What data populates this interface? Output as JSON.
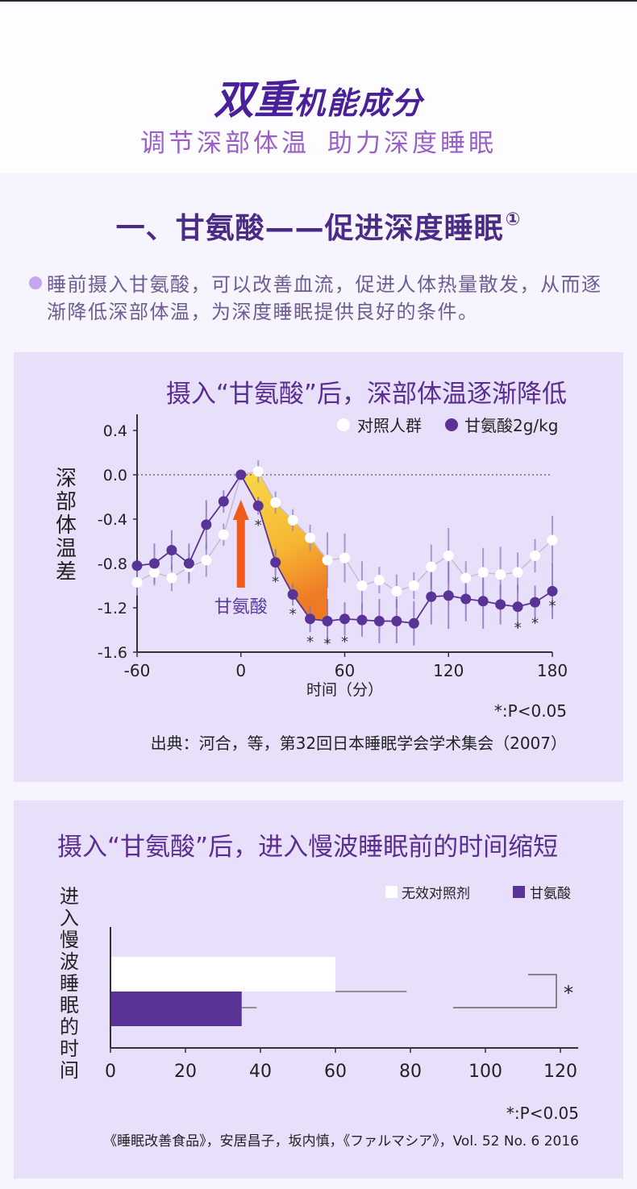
{
  "hero": {
    "title_big": "双重",
    "title_small": "机能成分",
    "subtitle_part1": "调节深部体温",
    "subtitle_part2": "助力深度睡眠"
  },
  "section1": {
    "title": "一、甘氨酸——促进深度睡眠",
    "footnote_mark": "①",
    "description": "睡前摄入甘氨酸，可以改善血流，促进人体热量散发，从而逐渐降低深部体温，为深度睡眠提供良好的条件。"
  },
  "colors": {
    "accent_purple": "#5a3396",
    "control_white": "#ffffff",
    "arrow_orange": "#f05a1a",
    "fill_yellow": "#f7c43c",
    "panel_bg": "#e8e0fb"
  },
  "chart1": {
    "title": "摄入“甘氨酸”后，深部体温逐渐降低",
    "ylabel": "深部体温差",
    "xlabel": "时间（分）",
    "arrow_label": "甘氨酸",
    "significance_note": "*:P<0.05",
    "source": "出典：河合，等，第32回日本睡眠学会学术集会（2007）",
    "legend": [
      "对照人群",
      "甘氨酸2g/kg"
    ]
  },
  "chart2": {
    "title": "摄入“甘氨酸”后，进入慢波睡眠前的时间缩短",
    "ylabel": "进入慢波睡眠的时间",
    "legend": [
      "无效对照剂",
      "甘氨酸"
    ],
    "significance_note": "*:P<0.05",
    "source": "《睡眠改善食品》，安居昌子，坂内慎，《ファルマシア》，Vol. 52 No. 6 2016"
  },
  "chart_data": [
    {
      "type": "line",
      "title": "摄入“甘氨酸”后，深部体温逐渐降低",
      "xlabel": "时间（分）",
      "ylabel": "深部体温差",
      "x": [
        -60,
        -50,
        -40,
        -30,
        -20,
        -10,
        0,
        10,
        20,
        30,
        40,
        50,
        60,
        70,
        80,
        90,
        100,
        110,
        120,
        130,
        140,
        150,
        160,
        170,
        180
      ],
      "xticks": [
        -60,
        0,
        60,
        120,
        180
      ],
      "yticks": [
        0.4,
        0.0,
        -0.4,
        -0.8,
        -1.2,
        -1.6
      ],
      "ytick_labels": [
        "0.4",
        "0.0",
        "-0.4",
        "-0.8",
        "-1.2",
        "-1.6"
      ],
      "xlim": [
        -60,
        180
      ],
      "ylim": [
        -1.6,
        0.5
      ],
      "reference_line": 0.0,
      "series": [
        {
          "name": "对照人群",
          "marker": "white-circle",
          "values": [
            -0.97,
            -0.88,
            -0.93,
            -0.83,
            -0.77,
            -0.54,
            0.0,
            0.03,
            -0.25,
            -0.41,
            -0.57,
            -0.77,
            -0.75,
            -1.0,
            -0.95,
            -1.05,
            -1.0,
            -0.83,
            -0.73,
            -0.93,
            -0.88,
            -0.9,
            -0.88,
            -0.73,
            -0.59
          ],
          "error": [
            0.12,
            0.12,
            0.12,
            0.12,
            0.15,
            0.1,
            0.0,
            0.1,
            0.1,
            0.1,
            0.12,
            0.25,
            0.22,
            0.22,
            0.12,
            0.15,
            0.12,
            0.2,
            0.25,
            0.15,
            0.22,
            0.25,
            0.18,
            0.15,
            0.22
          ]
        },
        {
          "name": "甘氨酸2g/kg",
          "marker": "purple-circle",
          "values": [
            -0.82,
            -0.8,
            -0.68,
            -0.8,
            -0.45,
            -0.24,
            0.0,
            -0.28,
            -0.79,
            -1.08,
            -1.3,
            -1.32,
            -1.3,
            -1.31,
            -1.32,
            -1.32,
            -1.34,
            -1.1,
            -1.09,
            -1.12,
            -1.14,
            -1.17,
            -1.19,
            -1.15,
            -1.05
          ],
          "error": [
            0.0,
            0.18,
            0.18,
            0.18,
            0.22,
            0.1,
            0.0,
            0.08,
            0.12,
            0.1,
            0.12,
            0.2,
            0.15,
            0.15,
            0.2,
            0.2,
            0.2,
            0.25,
            0.3,
            0.2,
            0.25,
            0.18,
            0.2,
            0.15,
            0.25
          ],
          "significant": [
            10,
            20,
            30,
            40,
            50,
            60,
            160,
            170,
            180
          ]
        }
      ],
      "annotations": [
        {
          "type": "arrow",
          "x": 0,
          "label": "甘氨酸"
        },
        {
          "type": "shaded_area",
          "x_range": [
            0,
            50
          ],
          "between": [
            "对照人群",
            "甘氨酸2g/kg"
          ]
        }
      ],
      "legend_position": "top-right",
      "grid": false
    },
    {
      "type": "bar",
      "orientation": "horizontal",
      "title": "摄入“甘氨酸”后，进入慢波睡眠前的时间缩短",
      "ylabel": "进入慢波睡眠的时间",
      "categories": [
        "无效对照剂",
        "甘氨酸"
      ],
      "values": [
        60,
        35
      ],
      "error": [
        19,
        4
      ],
      "xticks": [
        0,
        20,
        40,
        60,
        80,
        100,
        120
      ],
      "xlim": [
        0,
        125
      ],
      "significance": "*",
      "legend_position": "top-right",
      "grid": false
    }
  ]
}
